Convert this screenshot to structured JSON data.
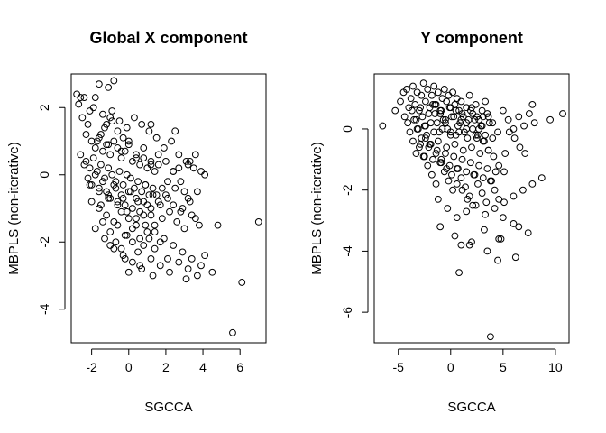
{
  "chart_data": [
    {
      "type": "scatter",
      "title": "Global X component",
      "xlabel": "SGCCA",
      "ylabel": "MBPLS (non-iterative)",
      "xlim": [
        -3.1,
        7.4
      ],
      "ylim": [
        -5.0,
        3.0
      ],
      "xticks": [
        -2,
        0,
        2,
        4,
        6
      ],
      "yticks": [
        -4,
        -2,
        0,
        2
      ],
      "grid": false,
      "x": [
        -2.8,
        -2.6,
        -2.4,
        -2.7,
        -2.5,
        -2.1,
        -1.8,
        -1.6,
        -1.9,
        -2.2,
        -1.4,
        -1.2,
        -1.0,
        -1.5,
        -1.7,
        -1.3,
        -0.9,
        -1.1,
        -0.6,
        -0.3,
        -2.3,
        -2.0,
        -1.8,
        -1.6,
        -1.4,
        -1.2,
        -1.0,
        -0.8,
        -0.6,
        -0.4,
        -0.2,
        0.0,
        0.2,
        0.4,
        0.6,
        0.8,
        1.0,
        1.2,
        1.4,
        1.6,
        -2.6,
        -2.3,
        -2.1,
        -1.9,
        -1.7,
        -1.5,
        -1.3,
        -1.1,
        -0.9,
        -0.7,
        -0.5,
        -0.3,
        -0.1,
        0.1,
        0.3,
        0.5,
        0.7,
        0.9,
        1.1,
        1.3,
        -2.4,
        -2.2,
        -2.0,
        -1.8,
        -1.6,
        -1.4,
        -1.2,
        -1.0,
        -0.8,
        -0.6,
        -0.4,
        -0.2,
        0.0,
        0.2,
        0.4,
        0.6,
        0.8,
        1.0,
        1.2,
        1.5,
        1.8,
        2.1,
        2.4,
        2.7,
        3.0,
        3.3,
        3.6,
        3.9,
        -2.0,
        -1.6,
        -1.2,
        -0.8,
        -0.4,
        0.0,
        0.4,
        0.8,
        1.2,
        1.6,
        2.0,
        2.4,
        2.8,
        3.2,
        3.6,
        -1.8,
        -1.4,
        -1.0,
        -0.6,
        -0.2,
        0.2,
        0.6,
        1.0,
        1.4,
        1.8,
        2.2,
        2.6,
        3.0,
        3.4,
        3.8,
        -1.5,
        -1.1,
        -0.7,
        -0.3,
        0.1,
        0.5,
        0.9,
        1.3,
        1.7,
        2.1,
        2.5,
        2.9,
        3.3,
        3.7,
        4.1,
        -0.9,
        -0.5,
        -0.1,
        0.3,
        0.7,
        1.1,
        1.5,
        1.9,
        2.3,
        2.7,
        3.1,
        3.5,
        -0.4,
        0.0,
        0.4,
        0.8,
        1.2,
        1.6,
        2.0,
        2.4,
        2.8,
        3.2,
        -1.3,
        -1.0,
        -0.7,
        -0.4,
        -0.1,
        0.2,
        0.5,
        0.8,
        1.1,
        1.4,
        1.7,
        -2.1,
        -1.6,
        -1.1,
        -0.6,
        -0.1,
        0.4,
        0.9,
        1.4,
        1.9,
        2.4,
        2.9,
        3.4,
        3.9,
        -0.3,
        0.2,
        0.7,
        1.2,
        1.7,
        2.2,
        2.7,
        3.2,
        3.7,
        -0.8,
        -0.2,
        0.6,
        1.3,
        2.1,
        3.1,
        0.0,
        -1.1,
        -0.8,
        1.2,
        2.5,
        4.5,
        4.1,
        5.6,
        6.1,
        7.0,
        4.8
      ],
      "y": [
        2.4,
        2.3,
        2.3,
        2.1,
        1.7,
        1.9,
        2.3,
        2.7,
        2.0,
        1.5,
        1.8,
        1.5,
        1.7,
        1.2,
        1.0,
        1.4,
        1.6,
        0.9,
        1.3,
        1.1,
        1.2,
        1.0,
        0.8,
        1.1,
        0.7,
        0.9,
        0.6,
        1.0,
        0.8,
        0.5,
        0.7,
        1.0,
        0.4,
        0.6,
        0.3,
        0.5,
        0.2,
        0.4,
        0.1,
        0.3,
        0.6,
        0.4,
        0.2,
        0.5,
        0.1,
        0.3,
        -0.1,
        0.2,
        0.0,
        -0.2,
        0.1,
        -0.3,
        0.0,
        -0.1,
        -0.4,
        -0.2,
        -0.5,
        -0.3,
        -0.6,
        -0.4,
        0.3,
        -0.1,
        -0.3,
        0.0,
        -0.4,
        -0.2,
        -0.5,
        -0.7,
        -0.3,
        -0.8,
        -0.6,
        -0.9,
        -0.5,
        -1.0,
        -0.7,
        -1.1,
        -0.8,
        -0.9,
        -1.2,
        -0.6,
        -0.4,
        -0.2,
        0.1,
        0.2,
        -0.5,
        0.4,
        0.6,
        0.1,
        -0.8,
        -1.0,
        -1.2,
        -1.4,
        -1.1,
        -1.3,
        -1.5,
        -1.2,
        -1.0,
        -0.8,
        -0.6,
        -0.9,
        -1.1,
        -0.7,
        -1.3,
        -1.6,
        -1.4,
        -1.7,
        -1.5,
        -1.8,
        -1.6,
        -1.9,
        -1.7,
        -1.5,
        -1.3,
        -1.1,
        -1.4,
        -1.6,
        -1.2,
        -1.5,
        -0.9,
        -0.6,
        -0.4,
        -0.7,
        -0.5,
        -0.8,
        -0.3,
        -0.6,
        -0.9,
        -0.7,
        -0.4,
        -1.0,
        -0.8,
        -0.5,
        0.0,
        1.9,
        1.6,
        1.4,
        1.7,
        1.5,
        1.3,
        1.1,
        0.8,
        1.0,
        0.6,
        0.4,
        0.2,
        0.7,
        0.9,
        0.5,
        0.8,
        0.3,
        0.6,
        0.4,
        0.1,
        -0.2,
        0.3,
        -1.9,
        -2.1,
        -2.0,
        -2.2,
        -1.8,
        -2.0,
        -2.3,
        -2.1,
        -1.9,
        -2.2,
        -2.0,
        -0.3,
        -0.5,
        -0.7,
        -0.9,
        -1.1,
        -1.3,
        -1.5,
        -1.7,
        -1.9,
        -2.1,
        -2.3,
        -2.5,
        -2.7,
        -2.4,
        -2.6,
        -2.8,
        -2.5,
        -2.7,
        -2.9,
        -2.6,
        -2.8,
        -3.0,
        -2.2,
        -2.5,
        -2.7,
        -3.0,
        -2.5,
        -3.1,
        -2.9,
        2.6,
        2.8,
        1.5,
        1.3,
        -2.9,
        -2.4,
        -4.7,
        -3.2,
        -1.4,
        -1.5
      ]
    },
    {
      "type": "scatter",
      "title": "Y component",
      "xlabel": "SGCCA",
      "ylabel": "MBPLS (non-iterative)",
      "xlim": [
        -7.3,
        11.3
      ],
      "ylim": [
        -7.0,
        1.8
      ],
      "xticks": [
        -5,
        0,
        5,
        10
      ],
      "yticks": [
        -6,
        -4,
        -2,
        0
      ],
      "grid": false,
      "x": [
        -6.5,
        -5.3,
        -4.8,
        -4.5,
        -4.2,
        -4.0,
        -3.8,
        -3.6,
        -3.4,
        -3.2,
        -3.0,
        -2.8,
        -2.6,
        -2.4,
        -2.2,
        -2.0,
        -1.8,
        -1.6,
        -1.4,
        -1.2,
        -1.0,
        -0.8,
        -0.6,
        -0.4,
        -0.2,
        0.0,
        0.2,
        0.4,
        0.6,
        0.8,
        1.0,
        1.2,
        1.5,
        1.8,
        2.1,
        2.4,
        2.7,
        3.0,
        3.3,
        3.6,
        -4.4,
        -4.1,
        -3.7,
        -3.3,
        -2.9,
        -2.5,
        -2.1,
        -1.7,
        -1.3,
        -0.9,
        -0.5,
        -0.1,
        0.3,
        0.7,
        1.1,
        1.5,
        1.9,
        2.3,
        2.7,
        3.1,
        -3.9,
        -3.5,
        -3.1,
        -2.7,
        -2.3,
        -1.9,
        -1.5,
        -1.1,
        -0.7,
        -0.3,
        0.1,
        0.5,
        0.9,
        1.3,
        1.7,
        2.1,
        2.5,
        2.9,
        3.3,
        3.7,
        -3.6,
        -3.2,
        -2.8,
        -2.4,
        -2.0,
        -1.6,
        -1.2,
        -0.8,
        -0.4,
        0.0,
        0.4,
        0.8,
        1.2,
        1.6,
        2.0,
        2.4,
        2.8,
        3.2,
        3.6,
        4.0,
        -3.3,
        -2.9,
        -2.5,
        -2.1,
        -1.7,
        -1.3,
        -0.9,
        -0.5,
        -0.1,
        0.3,
        0.7,
        1.1,
        1.5,
        1.9,
        2.3,
        2.7,
        3.1,
        3.5,
        3.9,
        4.3,
        -3.0,
        -2.6,
        -2.2,
        -1.8,
        -1.4,
        -1.0,
        -0.6,
        -0.2,
        0.2,
        0.6,
        1.0,
        1.4,
        1.8,
        2.2,
        2.6,
        3.0,
        3.4,
        3.8,
        4.2,
        4.6,
        -2.4,
        -1.9,
        -1.4,
        -0.9,
        -0.4,
        0.1,
        0.6,
        1.1,
        1.6,
        2.1,
        2.6,
        3.1,
        3.6,
        4.1,
        4.6,
        5.1,
        5.6,
        6.1,
        6.6,
        7.1,
        -1.5,
        -1.0,
        -0.5,
        0.0,
        0.5,
        1.0,
        1.5,
        2.0,
        2.5,
        3.0,
        3.5,
        4.0,
        4.5,
        5.0,
        5.5,
        6.0,
        6.5,
        7.0,
        7.5,
        8.0,
        -1.2,
        -0.3,
        0.6,
        1.5,
        2.4,
        3.3,
        4.2,
        5.1,
        6.0,
        6.9,
        7.8,
        8.7,
        -1.0,
        0.4,
        1.8,
        3.2,
        4.6,
        6.0,
        7.4,
        2.0,
        3.5,
        5.0,
        6.5,
        0.8,
        4.5,
        6.2,
        1.0,
        4.8,
        3.8,
        5.2,
        7.8,
        9.5,
        10.7
      ],
      "y": [
        0.1,
        0.6,
        0.9,
        1.2,
        1.3,
        0.7,
        1.0,
        1.4,
        0.8,
        1.2,
        0.6,
        1.1,
        1.5,
        0.9,
        1.3,
        0.7,
        1.1,
        1.4,
        0.8,
        1.2,
        0.6,
        1.0,
        1.3,
        0.9,
        1.1,
        0.7,
        1.2,
        0.8,
        1.0,
        0.6,
        0.9,
        0.4,
        0.7,
        1.1,
        0.5,
        0.8,
        0.3,
        0.6,
        0.9,
        0.4,
        0.4,
        0.2,
        0.6,
        0.3,
        0.7,
        0.1,
        0.5,
        0.8,
        0.2,
        0.6,
        0.3,
        0.7,
        0.4,
        0.1,
        0.5,
        0.2,
        0.6,
        0.3,
        0.0,
        0.4,
        -0.1,
        0.3,
        0.0,
        0.4,
        -0.2,
        0.2,
        0.5,
        -0.1,
        0.3,
        0.0,
        0.4,
        -0.2,
        0.2,
        -0.1,
        0.3,
        0.0,
        -0.3,
        0.1,
        -0.2,
        0.2,
        -0.4,
        0.0,
        -0.3,
        0.1,
        -0.5,
        -0.1,
        -0.4,
        0.0,
        -0.6,
        -0.2,
        -0.5,
        -0.1,
        -0.7,
        -0.3,
        -0.6,
        -0.2,
        -0.8,
        -0.4,
        -0.7,
        -0.3,
        -0.8,
        -0.5,
        -0.9,
        -0.6,
        -1.0,
        -0.7,
        -1.1,
        -0.8,
        -1.2,
        -0.9,
        -1.3,
        -1.0,
        -1.4,
        -1.1,
        -1.5,
        -1.2,
        -1.6,
        -1.3,
        -1.7,
        -1.4,
        -0.6,
        -0.9,
        -1.2,
        -1.5,
        -1.8,
        -1.1,
        -1.4,
        -1.7,
        -2.0,
        -1.3,
        -1.6,
        -1.9,
        -2.2,
        -1.5,
        -1.8,
        -2.1,
        -2.4,
        -1.7,
        -2.0,
        -2.3,
        -0.3,
        -0.5,
        -0.8,
        -1.0,
        -1.3,
        -1.5,
        -1.8,
        -2.0,
        -2.3,
        -2.5,
        -0.2,
        -0.4,
        -0.7,
        -0.9,
        -1.2,
        -1.4,
        -0.1,
        -0.3,
        -0.6,
        -0.8,
        0.8,
        0.5,
        0.2,
        -0.1,
        0.6,
        0.3,
        0.0,
        0.7,
        0.4,
        0.1,
        0.5,
        0.2,
        -0.1,
        0.6,
        0.3,
        0.0,
        0.4,
        0.1,
        0.5,
        0.2,
        -2.3,
        -2.6,
        -2.9,
        -2.7,
        -2.5,
        -2.8,
        -2.6,
        -2.4,
        -2.2,
        -2.0,
        -1.8,
        -1.6,
        -3.2,
        -3.5,
        -3.8,
        -3.3,
        -3.6,
        -3.1,
        -3.4,
        -3.7,
        -4.0,
        -2.9,
        -3.2,
        -4.7,
        -4.3,
        -4.2,
        -3.8,
        -3.6,
        -6.8,
        -0.8,
        0.8,
        0.3,
        0.5
      ]
    }
  ]
}
